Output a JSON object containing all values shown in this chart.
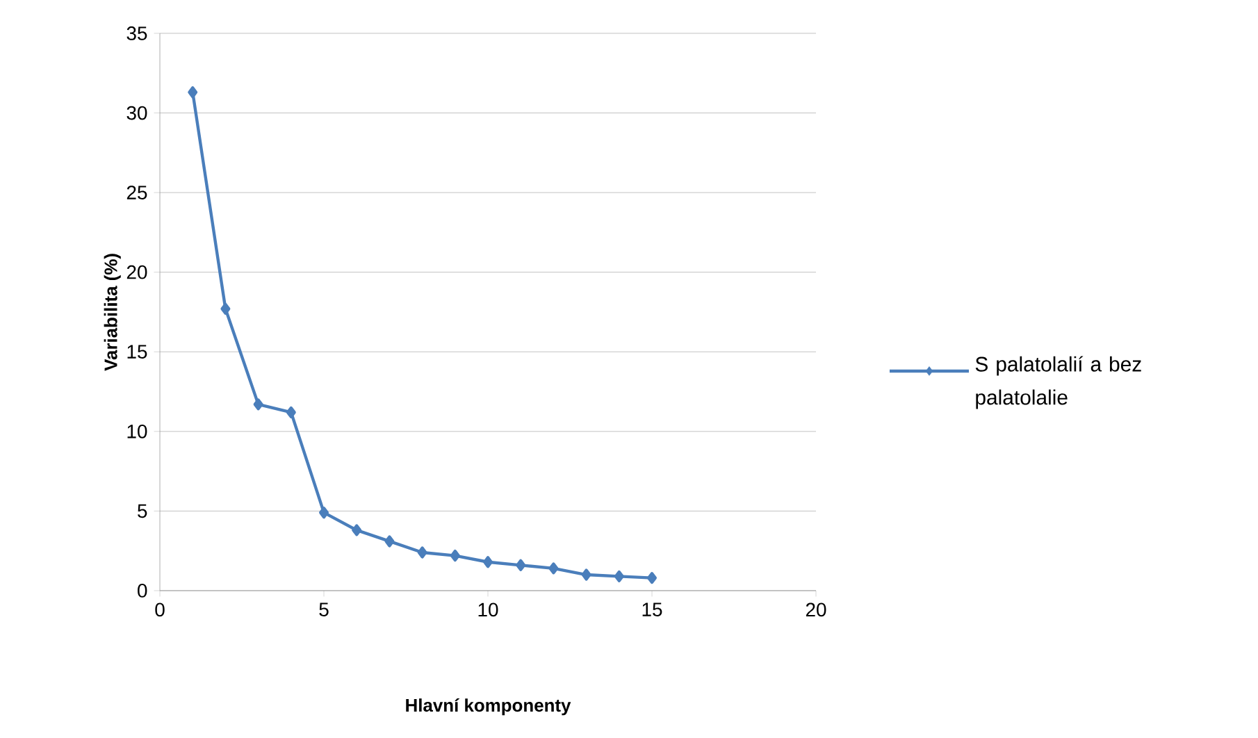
{
  "chart_data": {
    "type": "line",
    "xlabel": "Hlavní komponenty",
    "ylabel": "Variabilita (%)",
    "x": [
      1,
      2,
      3,
      4,
      5,
      6,
      7,
      8,
      9,
      10,
      11,
      12,
      13,
      14,
      15
    ],
    "series": [
      {
        "name": "S palatolalií a bez palatolalie",
        "color": "#4a7ebb",
        "values": [
          31.3,
          17.7,
          11.7,
          11.2,
          4.9,
          3.8,
          3.1,
          2.4,
          2.2,
          1.8,
          1.6,
          1.4,
          1.0,
          0.9,
          0.8
        ]
      }
    ],
    "xlim": [
      0,
      20
    ],
    "xticks": [
      0,
      5,
      10,
      15,
      20
    ],
    "ylim": [
      0,
      35
    ],
    "yticks": [
      0,
      5,
      10,
      15,
      20,
      25,
      30,
      35
    ],
    "grid": "y",
    "legend": "right",
    "marker": "diamond",
    "line_style": "solid"
  }
}
